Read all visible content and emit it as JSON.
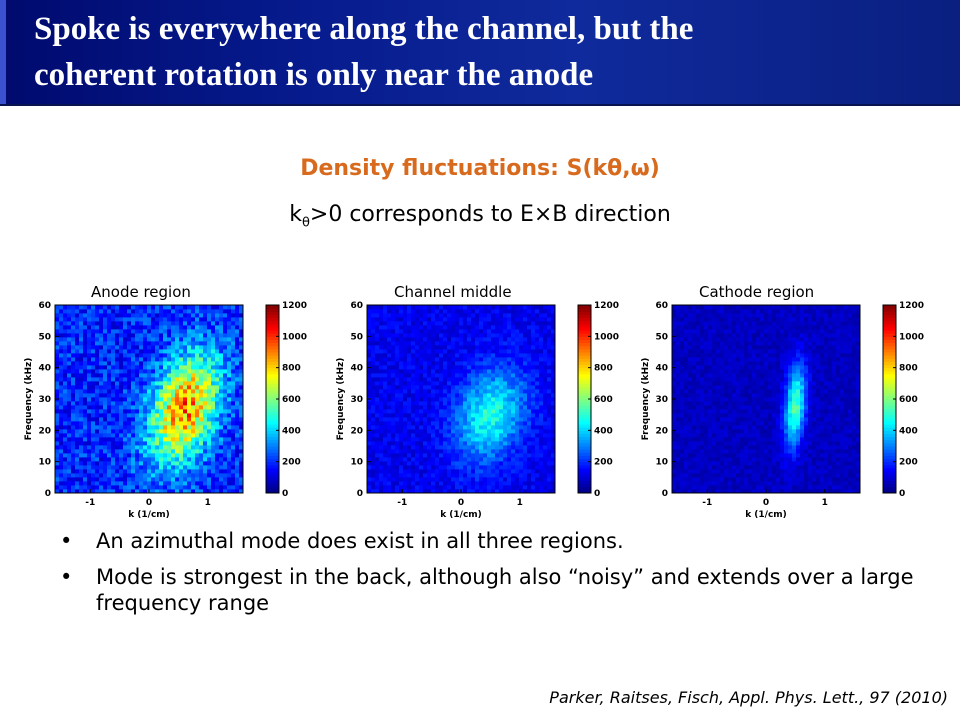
{
  "slide": {
    "title_line1": "Spoke is everywhere along the channel, but the",
    "title_line2": "coherent rotation is only near the anode",
    "subtitle": "Density fluctuations: S(kθ,ω)",
    "note_k": "k",
    "note_sub": "θ",
    "note_rest": ">0 corresponds to E×B direction",
    "bullets": [
      "An azimuthal mode does exist in all three regions.",
      "Mode is strongest in the back, although also “noisy” and extends over a large frequency range"
    ],
    "citation": "Parker,  Raitses, Fisch, Appl. Phys. Lett., 97 (2010)"
  },
  "colors": {
    "title_bg": "#0a1f8c",
    "subtitle": "#d86a1e",
    "jet_low": "#00008f",
    "jet_high": "#800000"
  },
  "chart_data": [
    {
      "type": "heatmap",
      "title": "Anode region",
      "xlabel": "k (1/cm)",
      "ylabel": "Frequency (kHz)",
      "xticks": [
        "-1",
        "0",
        "1"
      ],
      "yticks": [
        "0",
        "10",
        "20",
        "30",
        "40",
        "50",
        "60"
      ],
      "xlim": [
        -1.6,
        1.6
      ],
      "ylim": [
        0,
        60
      ],
      "colorbar_ticks": [
        "0",
        "200",
        "400",
        "600",
        "800",
        "1000",
        "1200"
      ],
      "colorbar_range": [
        0,
        1200
      ],
      "peak": {
        "k": 0.6,
        "freq_kHz": 27,
        "value": 900
      },
      "colormap": "jet"
    },
    {
      "type": "heatmap",
      "title": "Channel middle",
      "xlabel": "k (1/cm)",
      "ylabel": "Frequency (kHz)",
      "xticks": [
        "-1",
        "0",
        "1"
      ],
      "yticks": [
        "0",
        "10",
        "20",
        "30",
        "40",
        "50",
        "60"
      ],
      "xlim": [
        -1.6,
        1.6
      ],
      "ylim": [
        0,
        60
      ],
      "colorbar_ticks": [
        "0",
        "200",
        "400",
        "600",
        "800",
        "1000",
        "1200"
      ],
      "colorbar_range": [
        0,
        1200
      ],
      "peak": {
        "k": 0.5,
        "freq_kHz": 25,
        "value": 480
      },
      "colormap": "jet"
    },
    {
      "type": "heatmap",
      "title": "Cathode region",
      "xlabel": "k (1/cm)",
      "ylabel": "Frequency (kHz)",
      "xticks": [
        "-1",
        "0",
        "1"
      ],
      "yticks": [
        "0",
        "10",
        "20",
        "30",
        "40",
        "50",
        "60"
      ],
      "xlim": [
        -1.6,
        1.6
      ],
      "ylim": [
        0,
        60
      ],
      "colorbar_ticks": [
        "0",
        "200",
        "400",
        "600",
        "800",
        "1000",
        "1200"
      ],
      "colorbar_range": [
        0,
        1200
      ],
      "peak": {
        "k": 0.5,
        "freq_kHz": 28,
        "value": 550
      },
      "colormap": "jet"
    }
  ]
}
